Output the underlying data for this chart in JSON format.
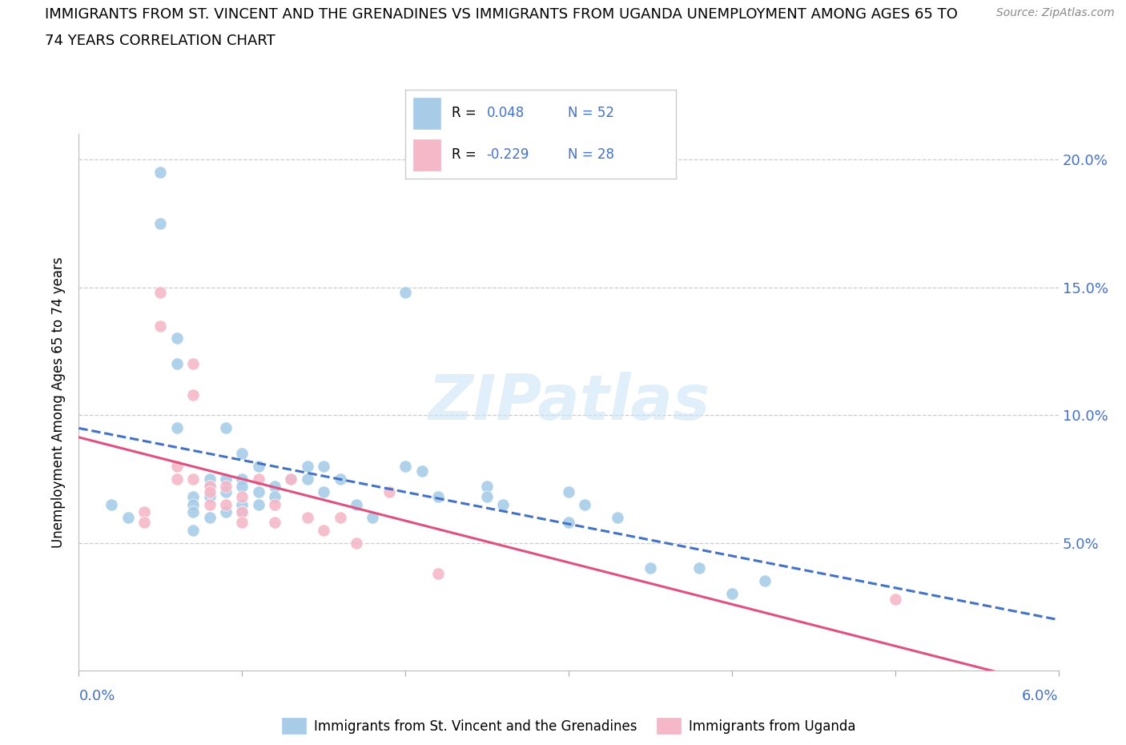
{
  "title_line1": "IMMIGRANTS FROM ST. VINCENT AND THE GRENADINES VS IMMIGRANTS FROM UGANDA UNEMPLOYMENT AMONG AGES 65 TO",
  "title_line2": "74 YEARS CORRELATION CHART",
  "source": "Source: ZipAtlas.com",
  "ylabel": "Unemployment Among Ages 65 to 74 years",
  "xlim": [
    0.0,
    0.06
  ],
  "ylim": [
    0.0,
    0.21
  ],
  "xticks": [
    0.0,
    0.01,
    0.02,
    0.03,
    0.04,
    0.05,
    0.06
  ],
  "yticks": [
    0.0,
    0.05,
    0.1,
    0.15,
    0.2
  ],
  "r_blue": 0.048,
  "n_blue": 52,
  "r_pink": -0.229,
  "n_pink": 28,
  "blue_color": "#a8cce8",
  "pink_color": "#f4b8c8",
  "blue_line_color": "#4472c4",
  "pink_line_color": "#e05080",
  "watermark": "ZIPatlas",
  "blue_scatter_x": [
    0.002,
    0.003,
    0.005,
    0.005,
    0.006,
    0.006,
    0.006,
    0.007,
    0.007,
    0.007,
    0.007,
    0.008,
    0.008,
    0.008,
    0.008,
    0.009,
    0.009,
    0.009,
    0.009,
    0.01,
    0.01,
    0.01,
    0.01,
    0.01,
    0.011,
    0.011,
    0.011,
    0.012,
    0.012,
    0.013,
    0.014,
    0.014,
    0.015,
    0.015,
    0.016,
    0.017,
    0.018,
    0.02,
    0.02,
    0.021,
    0.022,
    0.025,
    0.025,
    0.026,
    0.03,
    0.03,
    0.031,
    0.033,
    0.035,
    0.038,
    0.04,
    0.042
  ],
  "blue_scatter_y": [
    0.065,
    0.06,
    0.195,
    0.175,
    0.13,
    0.12,
    0.095,
    0.068,
    0.065,
    0.062,
    0.055,
    0.075,
    0.072,
    0.068,
    0.06,
    0.095,
    0.075,
    0.07,
    0.062,
    0.085,
    0.075,
    0.072,
    0.065,
    0.062,
    0.08,
    0.07,
    0.065,
    0.072,
    0.068,
    0.075,
    0.08,
    0.075,
    0.08,
    0.07,
    0.075,
    0.065,
    0.06,
    0.148,
    0.08,
    0.078,
    0.068,
    0.072,
    0.068,
    0.065,
    0.07,
    0.058,
    0.065,
    0.06,
    0.04,
    0.04,
    0.03,
    0.035
  ],
  "pink_scatter_x": [
    0.004,
    0.004,
    0.005,
    0.005,
    0.006,
    0.006,
    0.007,
    0.007,
    0.007,
    0.008,
    0.008,
    0.008,
    0.009,
    0.009,
    0.01,
    0.01,
    0.01,
    0.011,
    0.012,
    0.012,
    0.013,
    0.014,
    0.015,
    0.016,
    0.017,
    0.019,
    0.022,
    0.05
  ],
  "pink_scatter_y": [
    0.062,
    0.058,
    0.148,
    0.135,
    0.08,
    0.075,
    0.12,
    0.108,
    0.075,
    0.072,
    0.07,
    0.065,
    0.072,
    0.065,
    0.068,
    0.062,
    0.058,
    0.075,
    0.065,
    0.058,
    0.075,
    0.06,
    0.055,
    0.06,
    0.05,
    0.07,
    0.038,
    0.028
  ]
}
